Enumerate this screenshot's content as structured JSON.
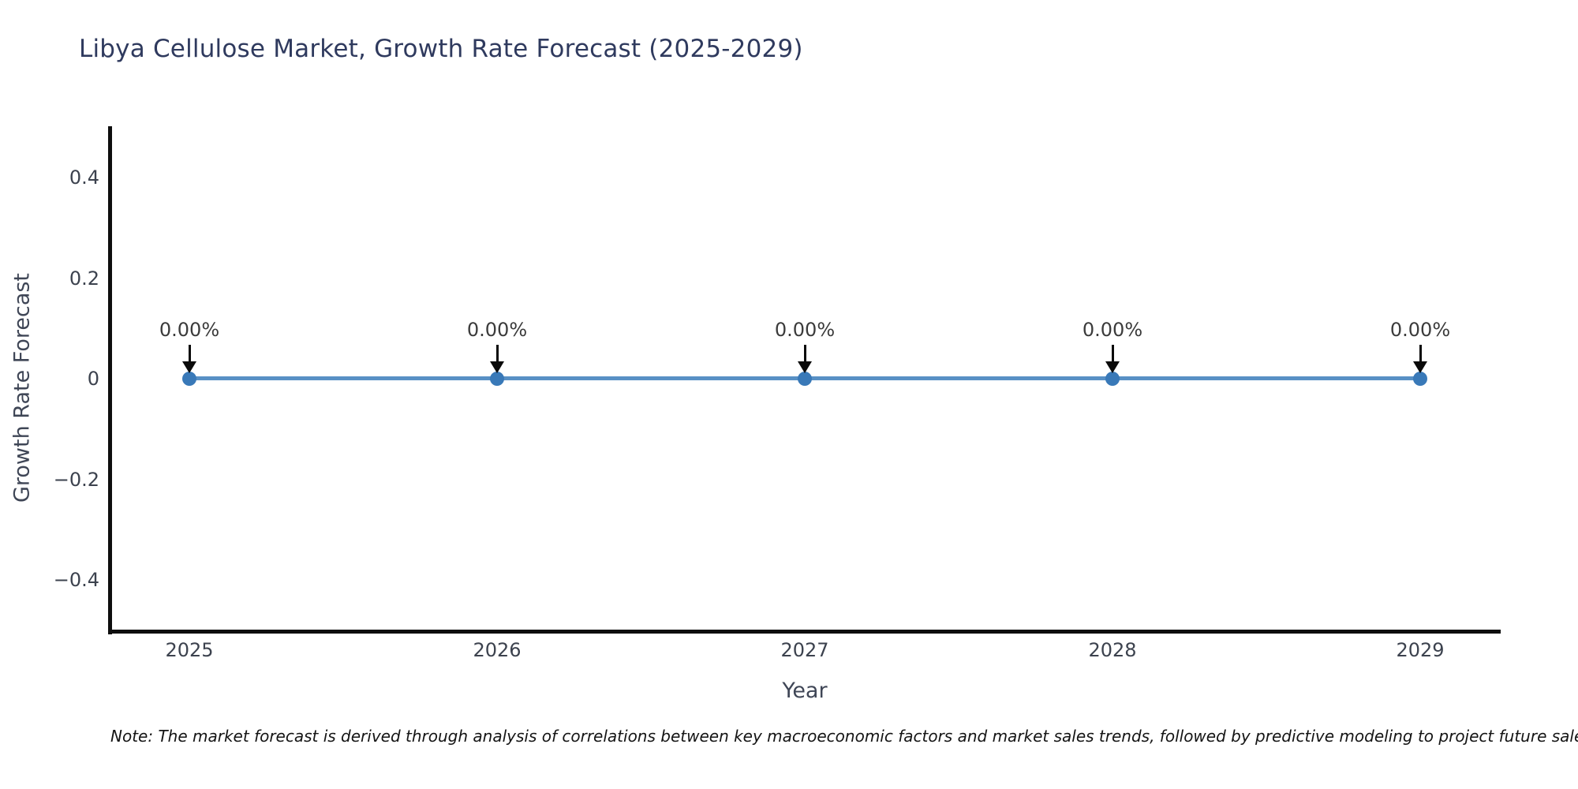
{
  "title": "Libya Cellulose Market, Growth Rate Forecast (2025-2029)",
  "note": "Note: The market forecast is derived through analysis of correlations between key macroeconomic factors and market sales trends, followed by predictive modeling to project future sales.",
  "colors": {
    "background": "#ffffff",
    "title_text": "#2f3a5e",
    "spine": "#0e0e0e",
    "tick_label": "#3c424e",
    "axis_label": "#3f4656",
    "line": "#5890c5",
    "marker": "#3979b8",
    "annotation_text": "#3b3b3b",
    "arrow": "#0a0a0a"
  },
  "chart_data": {
    "type": "line",
    "title": "Libya Cellulose Market, Growth Rate Forecast (2025-2029)",
    "xlabel": "Year",
    "ylabel": "Growth Rate Forecast",
    "x": [
      2025,
      2026,
      2027,
      2028,
      2029
    ],
    "series": [
      {
        "name": "Growth Rate Forecast",
        "values": [
          0,
          0,
          0,
          0,
          0
        ]
      }
    ],
    "point_labels": [
      "0.00%",
      "0.00%",
      "0.00%",
      "0.00%",
      "0.00%"
    ],
    "point_label_arrows": true,
    "xtick_labels": [
      "2025",
      "2026",
      "2027",
      "2028",
      "2029"
    ],
    "yticks": [
      0.4,
      0.2,
      0,
      -0.2,
      -0.4
    ],
    "ytick_labels": [
      "0.4",
      "0.2",
      "0",
      "−0.2",
      "−0.4"
    ],
    "ylim": [
      -0.5,
      0.5
    ],
    "xlim": [
      2024.74,
      2029.26
    ],
    "grid": false,
    "legend": false
  }
}
